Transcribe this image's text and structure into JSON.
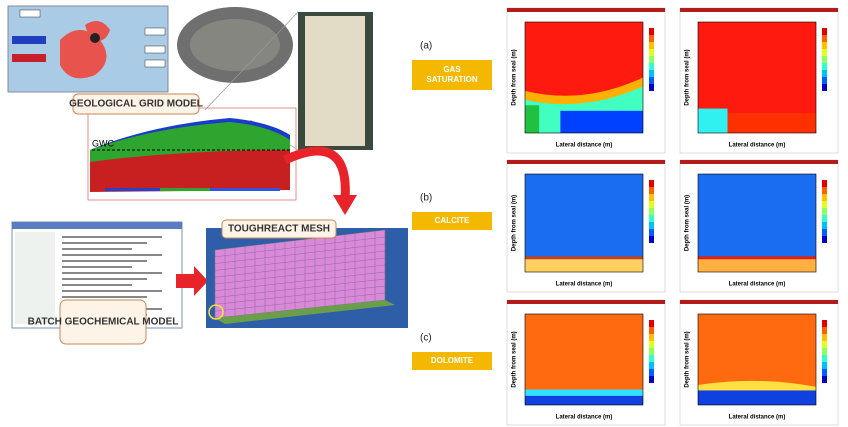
{
  "left": {
    "grid_model_label": "GEOLOGICAL GRID MODEL",
    "gwc_label": "GWC",
    "mesh_label": "TOUGHREACT MESH",
    "batch_label": "BATCH GEOCHEMICAL MODEL"
  },
  "right": {
    "rows": [
      {
        "letter": "(a)",
        "label": "GAS SATURATION"
      },
      {
        "letter": "(b)",
        "label": "CALCITE"
      },
      {
        "letter": "(c)",
        "label": "DOLOMITE"
      }
    ],
    "y_axis_label": "Depth from seal (m)",
    "x_axis_label": "Lateral distance (m)"
  }
}
